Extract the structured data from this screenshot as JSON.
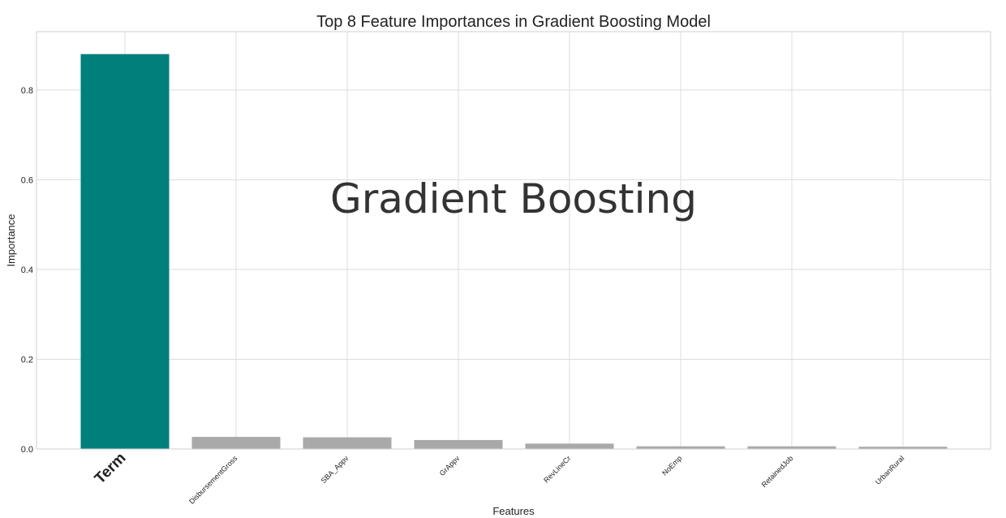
{
  "chart_data": {
    "type": "bar",
    "title": "Top 8 Feature Importances in Gradient Boosting Model",
    "xlabel": "Features",
    "ylabel": "Importance",
    "categories": [
      "Term",
      "DisbursementGross",
      "SBA_Appv",
      "GrAppv",
      "RevLineCr",
      "NoEmp",
      "RetainedJob",
      "UrbanRural"
    ],
    "values": [
      0.88,
      0.027,
      0.026,
      0.02,
      0.012,
      0.006,
      0.006,
      0.005
    ],
    "ylim": [
      0,
      0.93
    ],
    "yticks": [
      0.0,
      0.2,
      0.4,
      0.6,
      0.8
    ],
    "ytick_labels": [
      "0.0",
      "0.2",
      "0.4",
      "0.6",
      "0.8"
    ],
    "grid": true,
    "highlight_color": "#007f7b",
    "bar_color": "#a9a9a9",
    "annotation": "Gradient Boosting"
  }
}
